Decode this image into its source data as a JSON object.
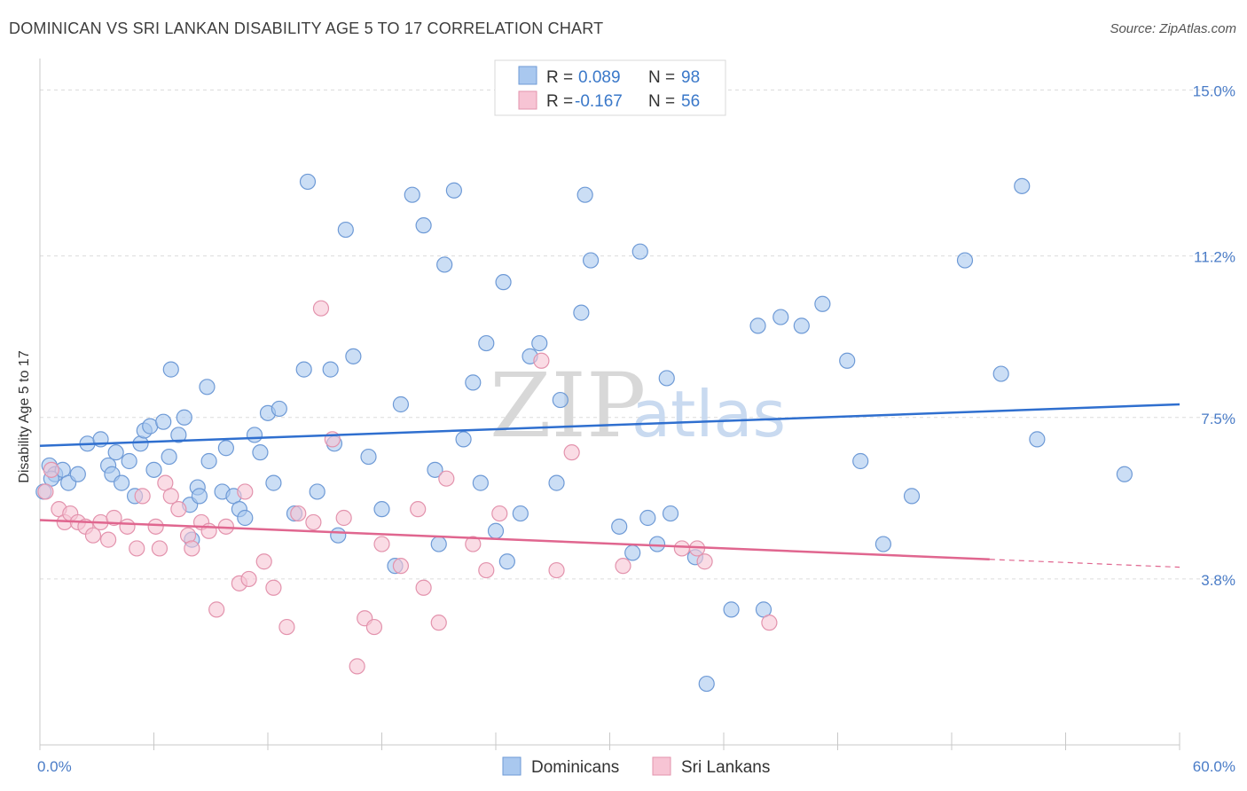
{
  "title": "DOMINICAN VS SRI LANKAN DISABILITY AGE 5 TO 17 CORRELATION CHART",
  "source": "Source: ZipAtlas.com",
  "watermark": {
    "zip": "ZIP",
    "atlas": "atlas"
  },
  "chart_data": {
    "type": "scatter",
    "ylabel": "Disability Age 5 to 17",
    "xlim": [
      0,
      60
    ],
    "ylim": [
      0,
      15.6
    ],
    "y_ticks": [
      {
        "value": 15.0,
        "label": "15.0%"
      },
      {
        "value": 11.2,
        "label": "11.2%"
      },
      {
        "value": 7.5,
        "label": "7.5%"
      },
      {
        "value": 3.8,
        "label": "3.8%"
      }
    ],
    "x_tick_labels": {
      "min": "0.0%",
      "max": "60.0%"
    },
    "grid": true,
    "legend_top": [
      {
        "r_label": "R =",
        "r_value": "0.089",
        "n_label": "N =",
        "n_value": "98",
        "color": "#a9c8ef",
        "stroke": "#6e9ad6"
      },
      {
        "r_label": "R =",
        "r_value": "-0.167",
        "n_label": "N =",
        "n_value": "56",
        "color": "#f7c4d4",
        "stroke": "#e393ad"
      }
    ],
    "series": [
      {
        "name": "Dominicans",
        "color": "#a9c8ef",
        "stroke": "#6e9ad6",
        "trend_color": "#2f6fcf",
        "trend": {
          "x0": 0,
          "y0": 6.85,
          "x1": 60,
          "y1": 7.8
        },
        "points": [
          [
            0.2,
            5.8
          ],
          [
            0.5,
            6.4
          ],
          [
            0.8,
            6.2
          ],
          [
            1.2,
            6.3
          ],
          [
            1.5,
            6.0
          ],
          [
            2.0,
            6.2
          ],
          [
            2.5,
            6.9
          ],
          [
            3.2,
            7.0
          ],
          [
            3.6,
            6.4
          ],
          [
            3.8,
            6.2
          ],
          [
            4.0,
            6.7
          ],
          [
            4.3,
            6.0
          ],
          [
            4.7,
            6.5
          ],
          [
            5.0,
            5.7
          ],
          [
            5.3,
            6.9
          ],
          [
            5.5,
            7.2
          ],
          [
            5.8,
            7.3
          ],
          [
            6.0,
            6.3
          ],
          [
            6.5,
            7.4
          ],
          [
            6.8,
            6.6
          ],
          [
            6.9,
            8.6
          ],
          [
            7.3,
            7.1
          ],
          [
            7.6,
            7.5
          ],
          [
            7.9,
            5.5
          ],
          [
            8.0,
            4.7
          ],
          [
            8.3,
            5.9
          ],
          [
            8.4,
            5.7
          ],
          [
            8.8,
            8.2
          ],
          [
            8.9,
            6.5
          ],
          [
            9.6,
            5.8
          ],
          [
            9.8,
            6.8
          ],
          [
            10.2,
            5.7
          ],
          [
            10.5,
            5.4
          ],
          [
            10.8,
            5.2
          ],
          [
            11.3,
            7.1
          ],
          [
            11.6,
            6.7
          ],
          [
            12.0,
            7.6
          ],
          [
            12.3,
            6.0
          ],
          [
            12.6,
            7.7
          ],
          [
            13.4,
            5.3
          ],
          [
            13.9,
            8.6
          ],
          [
            14.1,
            12.9
          ],
          [
            14.6,
            5.8
          ],
          [
            15.3,
            8.6
          ],
          [
            15.5,
            6.9
          ],
          [
            15.7,
            4.8
          ],
          [
            16.1,
            11.8
          ],
          [
            16.5,
            8.9
          ],
          [
            17.3,
            6.6
          ],
          [
            18.0,
            5.4
          ],
          [
            18.7,
            4.1
          ],
          [
            19.0,
            7.8
          ],
          [
            19.6,
            12.6
          ],
          [
            20.2,
            11.9
          ],
          [
            20.8,
            6.3
          ],
          [
            21.0,
            4.6
          ],
          [
            21.3,
            11.0
          ],
          [
            21.8,
            12.7
          ],
          [
            22.3,
            7.0
          ],
          [
            22.8,
            8.3
          ],
          [
            23.2,
            6.0
          ],
          [
            23.5,
            9.2
          ],
          [
            24.0,
            4.9
          ],
          [
            24.4,
            10.6
          ],
          [
            24.6,
            4.2
          ],
          [
            25.3,
            5.3
          ],
          [
            25.8,
            8.9
          ],
          [
            26.3,
            9.2
          ],
          [
            27.2,
            6.0
          ],
          [
            27.4,
            7.9
          ],
          [
            28.5,
            9.9
          ],
          [
            28.7,
            12.6
          ],
          [
            29.0,
            11.1
          ],
          [
            30.5,
            5.0
          ],
          [
            31.2,
            4.4
          ],
          [
            31.6,
            11.3
          ],
          [
            32.0,
            5.2
          ],
          [
            32.5,
            4.6
          ],
          [
            33.0,
            8.4
          ],
          [
            33.2,
            5.3
          ],
          [
            34.5,
            4.3
          ],
          [
            35.1,
            1.4
          ],
          [
            36.4,
            3.1
          ],
          [
            37.8,
            9.6
          ],
          [
            38.1,
            3.1
          ],
          [
            39.0,
            9.8
          ],
          [
            40.1,
            9.6
          ],
          [
            41.2,
            10.1
          ],
          [
            42.5,
            8.8
          ],
          [
            43.2,
            6.5
          ],
          [
            44.4,
            4.6
          ],
          [
            45.9,
            5.7
          ],
          [
            48.7,
            11.1
          ],
          [
            50.6,
            8.5
          ],
          [
            51.7,
            12.8
          ],
          [
            52.5,
            7.0
          ],
          [
            57.1,
            6.2
          ],
          [
            0.6,
            6.1
          ]
        ]
      },
      {
        "name": "Sri Lankans",
        "color": "#f7c4d4",
        "stroke": "#e393ad",
        "trend_color": "#e0668f",
        "trend": {
          "x0": 0,
          "y0": 5.15,
          "x1": 50,
          "y1": 4.25
        },
        "trend_ext": {
          "x0": 50,
          "y0": 4.25,
          "x1": 60,
          "y1": 4.07
        },
        "points": [
          [
            0.3,
            5.8
          ],
          [
            0.6,
            6.3
          ],
          [
            1.0,
            5.4
          ],
          [
            1.3,
            5.1
          ],
          [
            1.6,
            5.3
          ],
          [
            2.0,
            5.1
          ],
          [
            2.4,
            5.0
          ],
          [
            2.8,
            4.8
          ],
          [
            3.2,
            5.1
          ],
          [
            3.6,
            4.7
          ],
          [
            3.9,
            5.2
          ],
          [
            4.6,
            5.0
          ],
          [
            5.1,
            4.5
          ],
          [
            5.4,
            5.7
          ],
          [
            6.1,
            5.0
          ],
          [
            6.3,
            4.5
          ],
          [
            6.6,
            6.0
          ],
          [
            6.9,
            5.7
          ],
          [
            7.3,
            5.4
          ],
          [
            7.8,
            4.8
          ],
          [
            8.0,
            4.5
          ],
          [
            8.5,
            5.1
          ],
          [
            8.9,
            4.9
          ],
          [
            9.3,
            3.1
          ],
          [
            9.8,
            5.0
          ],
          [
            10.5,
            3.7
          ],
          [
            10.8,
            5.8
          ],
          [
            11.0,
            3.8
          ],
          [
            11.8,
            4.2
          ],
          [
            12.3,
            3.6
          ],
          [
            13.0,
            2.7
          ],
          [
            13.6,
            5.3
          ],
          [
            14.4,
            5.1
          ],
          [
            14.8,
            10.0
          ],
          [
            15.4,
            7.0
          ],
          [
            16.0,
            5.2
          ],
          [
            16.7,
            1.8
          ],
          [
            17.1,
            2.9
          ],
          [
            17.6,
            2.7
          ],
          [
            18.0,
            4.6
          ],
          [
            19.0,
            4.1
          ],
          [
            19.9,
            5.4
          ],
          [
            20.2,
            3.6
          ],
          [
            21.0,
            2.8
          ],
          [
            21.4,
            6.1
          ],
          [
            22.8,
            4.6
          ],
          [
            23.5,
            4.0
          ],
          [
            24.2,
            5.3
          ],
          [
            26.4,
            8.8
          ],
          [
            27.2,
            4.0
          ],
          [
            28.0,
            6.7
          ],
          [
            30.7,
            4.1
          ],
          [
            33.8,
            4.5
          ],
          [
            34.6,
            4.5
          ],
          [
            35.0,
            4.2
          ],
          [
            38.4,
            2.8
          ]
        ]
      }
    ]
  },
  "legend_bottom": [
    {
      "label": "Dominicans",
      "color": "#a9c8ef",
      "stroke": "#6e9ad6"
    },
    {
      "label": "Sri Lankans",
      "color": "#f7c4d4",
      "stroke": "#e393ad"
    }
  ]
}
